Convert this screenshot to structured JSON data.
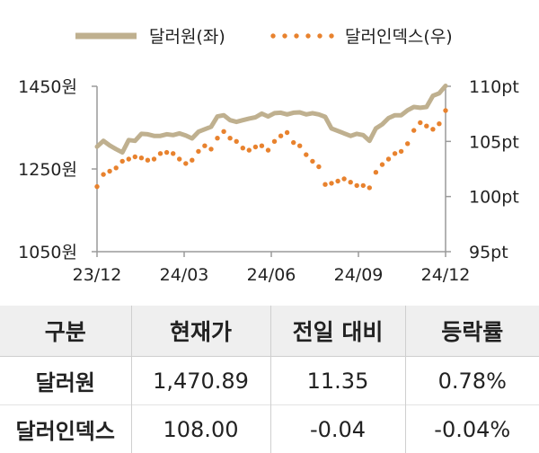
{
  "chart_data": {
    "type": "line",
    "legend": {
      "placement": "top-center",
      "items": [
        {
          "label": "달러원(좌)",
          "style": "line",
          "color": "#bfb08f"
        },
        {
          "label": "달러인덱스(우)",
          "style": "dots",
          "color": "#e8822e"
        }
      ]
    },
    "x_tick_labels": [
      "23/12",
      "24/03",
      "24/06",
      "24/09",
      "24/12"
    ],
    "left_axis": {
      "unit": "원",
      "ylim": [
        1050,
        1450
      ],
      "ticks": [
        1050,
        1250,
        1450
      ],
      "tick_labels": [
        "1050원",
        "1250원",
        "1450원"
      ]
    },
    "right_axis": {
      "unit": "pt",
      "ylim": [
        95,
        110
      ],
      "ticks": [
        95,
        100,
        105,
        110
      ],
      "tick_labels": [
        "95pt",
        "100pt",
        "105pt",
        "110pt"
      ]
    },
    "grid": false,
    "series": [
      {
        "name": "달러원(좌)",
        "axis": "left",
        "color": "#bfb08f",
        "x": [
          "2023-12-01",
          "2023-12-08",
          "2023-12-15",
          "2023-12-22",
          "2023-12-29",
          "2024-01-05",
          "2024-01-12",
          "2024-01-19",
          "2024-01-26",
          "2024-02-02",
          "2024-02-09",
          "2024-02-16",
          "2024-02-23",
          "2024-03-01",
          "2024-03-08",
          "2024-03-15",
          "2024-03-22",
          "2024-03-29",
          "2024-04-05",
          "2024-04-12",
          "2024-04-19",
          "2024-04-26",
          "2024-05-03",
          "2024-05-10",
          "2024-05-17",
          "2024-05-24",
          "2024-05-31",
          "2024-06-07",
          "2024-06-14",
          "2024-06-21",
          "2024-06-28",
          "2024-07-05",
          "2024-07-12",
          "2024-07-19",
          "2024-07-26",
          "2024-08-02",
          "2024-08-09",
          "2024-08-16",
          "2024-08-23",
          "2024-08-30",
          "2024-09-06",
          "2024-09-13",
          "2024-09-20",
          "2024-09-27",
          "2024-10-04",
          "2024-10-11",
          "2024-10-18",
          "2024-10-25",
          "2024-11-01",
          "2024-11-08",
          "2024-11-15",
          "2024-11-22",
          "2024-11-29",
          "2024-12-06",
          "2024-12-13",
          "2024-12-20"
        ],
        "values": [
          1304,
          1318,
          1307,
          1298,
          1290,
          1320,
          1318,
          1335,
          1334,
          1330,
          1330,
          1334,
          1332,
          1336,
          1331,
          1324,
          1340,
          1346,
          1352,
          1377,
          1380,
          1368,
          1364,
          1368,
          1372,
          1375,
          1384,
          1377,
          1385,
          1386,
          1382,
          1386,
          1387,
          1382,
          1385,
          1382,
          1376,
          1348,
          1342,
          1336,
          1330,
          1335,
          1332,
          1318,
          1348,
          1358,
          1373,
          1380,
          1380,
          1392,
          1400,
          1398,
          1400,
          1427,
          1433,
          1451
        ]
      },
      {
        "name": "달러인덱스(우)",
        "axis": "right",
        "color": "#e8822e",
        "x": [
          "2023-12-01",
          "2023-12-08",
          "2023-12-15",
          "2023-12-22",
          "2023-12-29",
          "2024-01-05",
          "2024-01-12",
          "2024-01-19",
          "2024-01-26",
          "2024-02-02",
          "2024-02-09",
          "2024-02-16",
          "2024-02-23",
          "2024-03-01",
          "2024-03-08",
          "2024-03-15",
          "2024-03-22",
          "2024-03-29",
          "2024-04-05",
          "2024-04-12",
          "2024-04-19",
          "2024-04-26",
          "2024-05-03",
          "2024-05-10",
          "2024-05-17",
          "2024-05-24",
          "2024-05-31",
          "2024-06-07",
          "2024-06-14",
          "2024-06-21",
          "2024-06-28",
          "2024-07-05",
          "2024-07-12",
          "2024-07-19",
          "2024-07-26",
          "2024-08-02",
          "2024-08-09",
          "2024-08-16",
          "2024-08-23",
          "2024-08-30",
          "2024-09-06",
          "2024-09-13",
          "2024-09-20",
          "2024-09-27",
          "2024-10-04",
          "2024-10-11",
          "2024-10-18",
          "2024-10-25",
          "2024-11-01",
          "2024-11-08",
          "2024-11-15",
          "2024-11-22",
          "2024-11-29",
          "2024-12-06",
          "2024-12-13",
          "2024-12-20"
        ],
        "values": [
          100.9,
          102.0,
          102.3,
          102.6,
          103.2,
          103.4,
          103.6,
          103.5,
          103.3,
          103.4,
          103.9,
          104.0,
          103.9,
          103.4,
          103.0,
          103.3,
          104.1,
          104.6,
          104.3,
          105.3,
          105.9,
          105.3,
          105.0,
          104.4,
          104.2,
          104.5,
          104.6,
          104.2,
          105.0,
          105.5,
          105.8,
          104.9,
          104.6,
          103.8,
          103.2,
          102.7,
          101.1,
          101.2,
          101.4,
          101.6,
          101.3,
          101.0,
          101.0,
          100.8,
          102.2,
          102.9,
          103.4,
          103.9,
          104.1,
          104.8,
          106.0,
          106.7,
          106.4,
          106.1,
          106.6,
          107.8
        ]
      }
    ]
  },
  "table": {
    "headers": [
      "구분",
      "현재가",
      "전일 대비",
      "등락률"
    ],
    "rows": [
      [
        "달러원",
        "1,470.89",
        "11.35",
        "0.78%"
      ],
      [
        "달러인덱스",
        "108.00",
        "-0.04",
        "-0.04%"
      ]
    ]
  }
}
